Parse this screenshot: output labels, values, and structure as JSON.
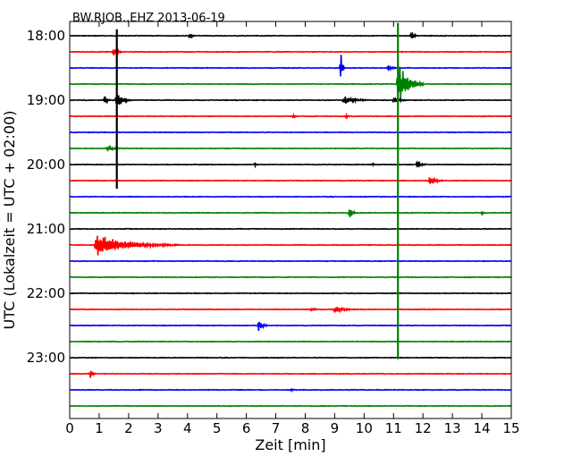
{
  "chart_data": {
    "type": "line",
    "title": "BW.RJOB..EHZ 2013-06-19",
    "xlabel": "Zeit  [min]",
    "ylabel": "UTC (Lokalzeit = UTC + 02:00)",
    "xlim": [
      0,
      15
    ],
    "x_ticks": [
      "0",
      "1",
      "2",
      "3",
      "4",
      "5",
      "6",
      "7",
      "8",
      "9",
      "10",
      "11",
      "12",
      "13",
      "14",
      "15"
    ],
    "y_ticks": [
      {
        "label": "18:00",
        "trace": 0
      },
      {
        "label": "19:00",
        "trace": 4
      },
      {
        "label": "20:00",
        "trace": 8
      },
      {
        "label": "21:00",
        "trace": 12
      },
      {
        "label": "22:00",
        "trace": 16
      },
      {
        "label": "23:00",
        "trace": 20
      }
    ],
    "trace_interval_min": 15,
    "trace_count": 24,
    "colors": [
      "#000000",
      "#ff0000",
      "#0000ff",
      "#008000"
    ],
    "events": [
      {
        "trace": 0,
        "t": 4.1,
        "amp": 5,
        "dur": 0.15
      },
      {
        "trace": 0,
        "t": 11.6,
        "amp": 6,
        "dur": 0.25
      },
      {
        "trace": 1,
        "t": 1.5,
        "amp": 6,
        "dur": 0.3
      },
      {
        "trace": 2,
        "t": 9.2,
        "amp": 22,
        "dur": 0.15
      },
      {
        "trace": 2,
        "t": 10.8,
        "amp": 4,
        "dur": 0.4
      },
      {
        "trace": 3,
        "t": 11.15,
        "amp": 25,
        "dur": 0.9
      },
      {
        "trace": 4,
        "t": 1.2,
        "amp": 6,
        "dur": 0.2
      },
      {
        "trace": 4,
        "t": 1.6,
        "amp": 12,
        "dur": 0.5
      },
      {
        "trace": 4,
        "t": 9.3,
        "amp": 5,
        "dur": 0.9
      },
      {
        "trace": 4,
        "t": 11.0,
        "amp": 4,
        "dur": 0.5
      },
      {
        "trace": 5,
        "t": 7.6,
        "amp": 3,
        "dur": 0.15
      },
      {
        "trace": 5,
        "t": 9.4,
        "amp": 3,
        "dur": 0.15
      },
      {
        "trace": 7,
        "t": 1.3,
        "amp": 3,
        "dur": 0.5
      },
      {
        "trace": 8,
        "t": 6.3,
        "amp": 3,
        "dur": 0.1
      },
      {
        "trace": 8,
        "t": 10.3,
        "amp": 2,
        "dur": 0.1
      },
      {
        "trace": 8,
        "t": 11.8,
        "amp": 7,
        "dur": 0.3
      },
      {
        "trace": 9,
        "t": 12.2,
        "amp": 5,
        "dur": 0.6
      },
      {
        "trace": 11,
        "t": 9.5,
        "amp": 9,
        "dur": 0.25
      },
      {
        "trace": 11,
        "t": 14.0,
        "amp": 3,
        "dur": 0.15
      },
      {
        "trace": 13,
        "t": 0.9,
        "amp": 12,
        "dur": 2.8
      },
      {
        "trace": 17,
        "t": 8.2,
        "amp": 2,
        "dur": 0.4
      },
      {
        "trace": 17,
        "t": 9.0,
        "amp": 4,
        "dur": 0.8
      },
      {
        "trace": 18,
        "t": 6.4,
        "amp": 9,
        "dur": 0.3
      },
      {
        "trace": 21,
        "t": 0.7,
        "amp": 5,
        "dur": 0.2
      },
      {
        "trace": 22,
        "t": 7.5,
        "amp": 2,
        "dur": 0.2
      }
    ],
    "spikes": [
      {
        "t": 1.6,
        "from_trace": -0.4,
        "to_trace": 9.5,
        "color": "#000000"
      },
      {
        "t": 11.15,
        "from_trace": -0.8,
        "to_trace": 20.1,
        "color": "#008000"
      }
    ]
  }
}
